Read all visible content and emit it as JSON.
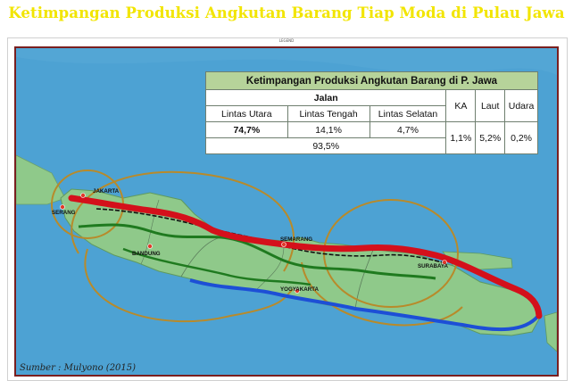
{
  "slide": {
    "title": "Ketimpangan Produksi Angkutan Barang Tiap Moda di Pulau Jawa",
    "frame_label": "LEGEND",
    "source": "Sumber : Mulyono (2015)"
  },
  "table": {
    "title": "Ketimpangan Produksi Angkutan Barang di P. Jawa",
    "jalan_label": "Jalan",
    "columns": [
      "Lintas Utara",
      "Lintas Tengah",
      "Lintas Selatan"
    ],
    "values": [
      "74,7%",
      "14,1%",
      "4,7%"
    ],
    "jalan_total": "93,5%",
    "other_modes": [
      {
        "label": "KA",
        "value": "1,1%"
      },
      {
        "label": "Laut",
        "value": "5,2%"
      },
      {
        "label": "Udara",
        "value": "0,2%"
      }
    ]
  },
  "map": {
    "cities": [
      "JAKARTA",
      "SERANG",
      "BANDUNG",
      "SEMARANG",
      "YOGYAKARTA",
      "SURABAYA"
    ],
    "colors": {
      "sea": "#4a9fd0",
      "land": "#8fc98a",
      "north_route": "#d4101b",
      "central_route": "#1f7a1f",
      "south_route": "#1d4fd6",
      "rail": "#111111",
      "arcs": "#b88a2a"
    }
  }
}
